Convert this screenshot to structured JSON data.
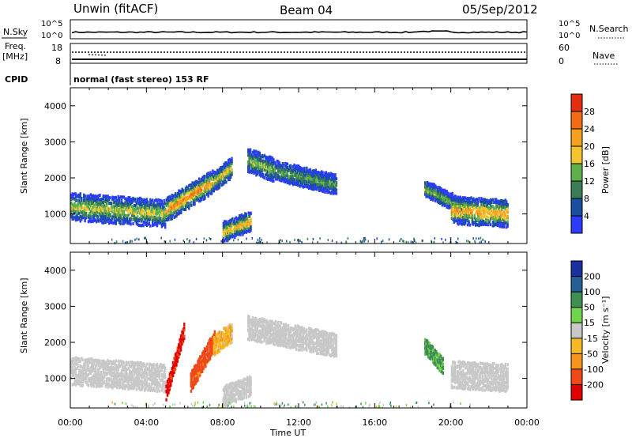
{
  "header": {
    "station": "Unwin (fitACF)",
    "beam": "Beam 04",
    "date": "05/Sep/2012"
  },
  "top_panels": {
    "nsky_label": "N.Sky",
    "nsearch_label": "N.Search",
    "nsky_ticks": [
      "10^5",
      "10^0"
    ],
    "nsearch_ticks": [
      "10^5",
      "10^0"
    ],
    "freq_label_1": "Freq.",
    "freq_label_2": "[MHz]",
    "freq_ticks": [
      "18",
      "8"
    ],
    "nave_label": "Nave",
    "nave_ticks": [
      "60",
      "0"
    ],
    "cpid_label": "CPID",
    "cpid_text": "normal (fast stereo) 153 RF"
  },
  "colors": {
    "power": [
      "#2b3cff",
      "#1a4fa0",
      "#3a7d55",
      "#5fb04a",
      "#f3c531",
      "#f5a021",
      "#f36b12",
      "#e52e10",
      "#d40000"
    ],
    "velocity": [
      "#e00000",
      "#f04818",
      "#f5941e",
      "#f6b823",
      "#c8c8c8",
      "#6fd44a",
      "#3f8f52",
      "#265f97",
      "#1a2fa0"
    ],
    "gray": "#c8c8c8"
  },
  "chart_data": [
    {
      "type": "heatmap",
      "name": "power",
      "ylabel": "Slant Range [km]",
      "xlabel": "",
      "xlim": [
        0,
        24
      ],
      "ylim": [
        180,
        4500
      ],
      "yticks": [
        "1000",
        "2000",
        "3000",
        "4000"
      ],
      "colorbar_label": "Power [dB]",
      "colorbar_range": [
        0,
        32
      ],
      "colorbar_ticks": [
        "4",
        "8",
        "12",
        "16",
        "20",
        "24",
        "28"
      ],
      "echo_bands": [
        {
          "x": [
            0.0,
            5.0
          ],
          "y": [
            1200,
            1000
          ],
          "width": 350,
          "peak": 18
        },
        {
          "x": [
            5.0,
            7.5
          ],
          "y": [
            1100,
            1900
          ],
          "width": 300,
          "peak": 26
        },
        {
          "x": [
            7.5,
            8.5
          ],
          "y": [
            1900,
            2300
          ],
          "width": 250,
          "peak": 20
        },
        {
          "x": [
            8.0,
            9.5
          ],
          "y": [
            500,
            800
          ],
          "width": 250,
          "peak": 22
        },
        {
          "x": [
            9.3,
            10.7
          ],
          "y": [
            2500,
            2200
          ],
          "width": 300,
          "peak": 16
        },
        {
          "x": [
            10.7,
            14.0
          ],
          "y": [
            2200,
            1800
          ],
          "width": 250,
          "peak": 14
        },
        {
          "x": [
            18.6,
            21.0
          ],
          "y": [
            1700,
            1100
          ],
          "width": 200,
          "peak": 16
        },
        {
          "x": [
            20.0,
            23.0
          ],
          "y": [
            1100,
            1000
          ],
          "width": 350,
          "peak": 24
        }
      ]
    },
    {
      "type": "heatmap",
      "name": "velocity",
      "ylabel": "Slant Range [km]",
      "xlabel": "Time UT",
      "xlim": [
        0,
        24
      ],
      "ylim": [
        180,
        4500
      ],
      "yticks": [
        "1000",
        "2000",
        "3000",
        "4000"
      ],
      "xticks": [
        "00:00",
        "04:00",
        "08:00",
        "12:00",
        "16:00",
        "20:00",
        "00:00"
      ],
      "colorbar_label": "Velocity [m s⁻¹]",
      "colorbar_ticks": [
        "200",
        "100",
        "50",
        "15",
        "-15",
        "-50",
        "-100",
        "-200"
      ],
      "echo_bands": [
        {
          "x": [
            0.0,
            5.0
          ],
          "y": [
            1200,
            1000
          ],
          "width": 350,
          "vel": 0
        },
        {
          "x": [
            5.0,
            6.0
          ],
          "y": [
            600,
            2400
          ],
          "width": 200,
          "vel": -200
        },
        {
          "x": [
            6.3,
            7.6
          ],
          "y": [
            900,
            2100
          ],
          "width": 250,
          "vel": -120
        },
        {
          "x": [
            7.5,
            8.5
          ],
          "y": [
            1900,
            2300
          ],
          "width": 250,
          "vel": -30
        },
        {
          "x": [
            8.0,
            9.5
          ],
          "y": [
            500,
            800
          ],
          "width": 250,
          "vel": 0
        },
        {
          "x": [
            9.3,
            14.0
          ],
          "y": [
            2400,
            1900
          ],
          "width": 300,
          "vel": 0
        },
        {
          "x": [
            18.6,
            19.6
          ],
          "y": [
            1900,
            1300
          ],
          "width": 200,
          "vel": 40
        },
        {
          "x": [
            20.0,
            23.0
          ],
          "y": [
            1100,
            1000
          ],
          "width": 350,
          "vel": 0
        }
      ]
    }
  ]
}
